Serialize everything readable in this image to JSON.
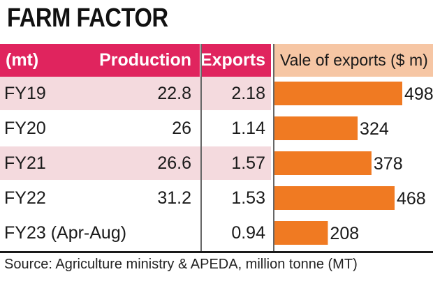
{
  "title": "FARM FACTOR",
  "headers": {
    "unit": "(mt)",
    "production": "Production",
    "exports": "Exports",
    "value": "Vale of exports ($ m)"
  },
  "rows": [
    {
      "year": "FY19",
      "production": "22.8",
      "exports": "2.18"
    },
    {
      "year": "FY20",
      "production": "26",
      "exports": "1.14"
    },
    {
      "year": "FY21",
      "production": "26.6",
      "exports": "1.57"
    },
    {
      "year": "FY22",
      "production": "31.2",
      "exports": "1.53"
    },
    {
      "year": "FY23 (Apr-Aug)",
      "production": "",
      "exports": "0.94"
    }
  ],
  "chart_data": {
    "type": "bar",
    "orientation": "horizontal",
    "categories": [
      "FY19",
      "FY20",
      "FY21",
      "FY22",
      "FY23 (Apr-Aug)"
    ],
    "values": [
      498,
      324,
      378,
      468,
      208
    ],
    "title": "Vale of exports ($ m)",
    "bar_color": "#f07a22",
    "data_labels": [
      "498",
      "324",
      "378",
      "468",
      "208"
    ],
    "grid": false
  },
  "source": "Source: Agriculture ministry & APEDA, million tonne (MT)",
  "colors": {
    "header": "#e0245e",
    "value_header": "#f6c6a4",
    "row_shade": "#f4dade",
    "bar": "#f07a22"
  }
}
